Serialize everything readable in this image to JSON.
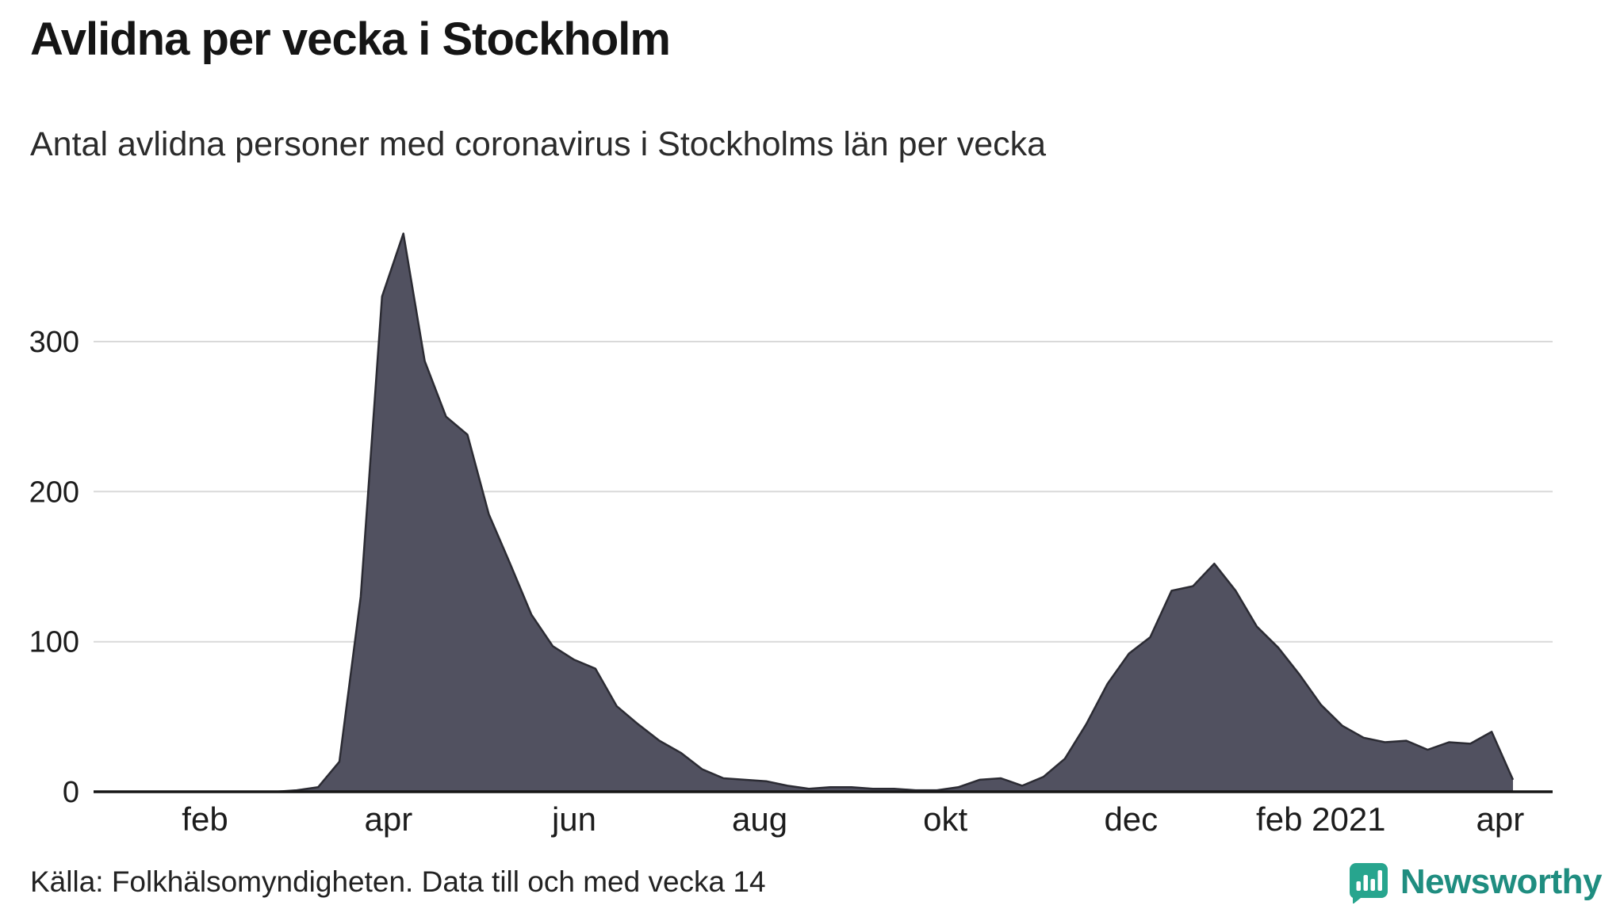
{
  "header": {
    "title": "Avlidna per vecka i Stockholm",
    "subtitle": "Antal avlidna personer med coronavirus i Stockholms län per vecka"
  },
  "footer": {
    "source": "Källa: Folkhälsomyndigheten. Data till och med vecka 14",
    "brand": {
      "name": "Newsworthy",
      "icon": "bar-chart-speech-bubble-icon",
      "icon_color": "#27a58e",
      "text_color": "#1f8d80"
    }
  },
  "chart_data": {
    "type": "area",
    "title": "Avlidna per vecka i Stockholm",
    "subtitle": "Antal avlidna personer med coronavirus i Stockholms län per vecka",
    "x_unit": "vecka",
    "x_domain": {
      "start": "2020 v.1",
      "end": "2021 v.14",
      "step_weeks": 1
    },
    "values": [
      0,
      0,
      0,
      0,
      0,
      0,
      0,
      0,
      0,
      1,
      3,
      20,
      130,
      330,
      372,
      287,
      250,
      238,
      185,
      152,
      118,
      97,
      88,
      82,
      57,
      45,
      34,
      26,
      15,
      9,
      8,
      7,
      4,
      2,
      3,
      3,
      2,
      2,
      1,
      1,
      3,
      8,
      9,
      4,
      10,
      22,
      45,
      72,
      92,
      103,
      134,
      137,
      152,
      134,
      110,
      96,
      78,
      58,
      44,
      36,
      33,
      34,
      28,
      33,
      32,
      40,
      8
    ],
    "y_ticks": [
      0,
      100,
      200,
      300
    ],
    "ylim": [
      0,
      380
    ],
    "x_ticks": [
      {
        "label": "feb",
        "week_index": 4.7
      },
      {
        "label": "apr",
        "week_index": 13.3
      },
      {
        "label": "jun",
        "week_index": 22.0
      },
      {
        "label": "aug",
        "week_index": 30.7
      },
      {
        "label": "okt",
        "week_index": 39.4
      },
      {
        "label": "dec",
        "week_index": 48.1
      },
      {
        "label": "feb 2021",
        "week_index": 57.0
      },
      {
        "label": "apr",
        "week_index": 65.4
      }
    ],
    "grid": "horizontal",
    "legend": "none",
    "area_color": "#515160",
    "line_color": "#2b2b33",
    "axis_color": "#161616",
    "grid_color": "#d9d9d9",
    "tick_label_color": "#1c1c1c"
  }
}
